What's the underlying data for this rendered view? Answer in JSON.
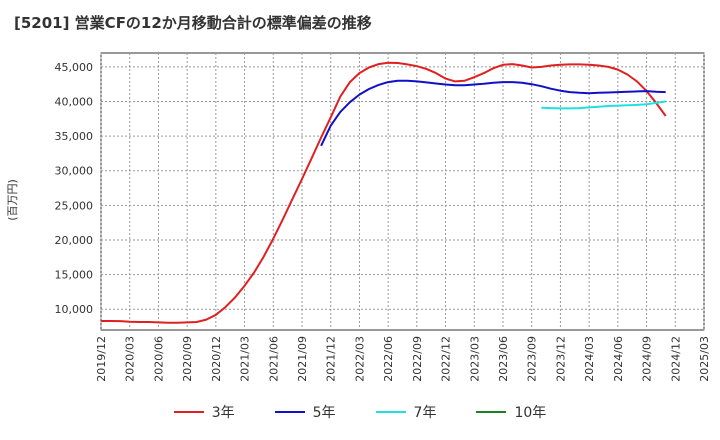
{
  "title": "[5201]  営業CFの12か月移動合計の標準偏差の推移",
  "chart_data": {
    "type": "line",
    "ylabel": "(百万円)",
    "xlabel": "",
    "ylim": [
      7000,
      47000
    ],
    "yticks": [
      10000,
      15000,
      20000,
      25000,
      30000,
      35000,
      40000,
      45000
    ],
    "ytick_labels": [
      "10,000",
      "15,000",
      "20,000",
      "25,000",
      "30,000",
      "35,000",
      "40,000",
      "45,000"
    ],
    "x_range": [
      "2019-12",
      "2025-03"
    ],
    "xtick_labels": [
      "2019/12",
      "2020/03",
      "2020/06",
      "2020/09",
      "2020/12",
      "2021/03",
      "2021/06",
      "2021/09",
      "2021/12",
      "2022/03",
      "2022/06",
      "2022/09",
      "2022/12",
      "2023/03",
      "2023/06",
      "2023/09",
      "2023/12",
      "2024/03",
      "2024/06",
      "2024/09",
      "2024/12",
      "2025/03"
    ],
    "grid": true,
    "legend_position": "bottom",
    "series": [
      {
        "name": "3年",
        "color": "#e02020",
        "points": [
          [
            "2019-12",
            8300
          ],
          [
            "2020-01",
            8300
          ],
          [
            "2020-02",
            8280
          ],
          [
            "2020-03",
            8200
          ],
          [
            "2020-04",
            8150
          ],
          [
            "2020-05",
            8150
          ],
          [
            "2020-06",
            8100
          ],
          [
            "2020-07",
            8050
          ],
          [
            "2020-08",
            8050
          ],
          [
            "2020-09",
            8100
          ],
          [
            "2020-10",
            8150
          ],
          [
            "2020-11",
            8500
          ],
          [
            "2020-12",
            9200
          ],
          [
            "2021-01",
            10300
          ],
          [
            "2021-02",
            11700
          ],
          [
            "2021-03",
            13400
          ],
          [
            "2021-04",
            15300
          ],
          [
            "2021-05",
            17600
          ],
          [
            "2021-06",
            20200
          ],
          [
            "2021-07",
            23000
          ],
          [
            "2021-08",
            25900
          ],
          [
            "2021-09",
            28800
          ],
          [
            "2021-10",
            31800
          ],
          [
            "2021-11",
            34800
          ],
          [
            "2021-12",
            37700
          ],
          [
            "2022-01",
            40700
          ],
          [
            "2022-02",
            42800
          ],
          [
            "2022-03",
            44100
          ],
          [
            "2022-04",
            44900
          ],
          [
            "2022-05",
            45400
          ],
          [
            "2022-06",
            45600
          ],
          [
            "2022-07",
            45550
          ],
          [
            "2022-08",
            45350
          ],
          [
            "2022-09",
            45100
          ],
          [
            "2022-10",
            44700
          ],
          [
            "2022-11",
            44100
          ],
          [
            "2022-12",
            43300
          ],
          [
            "2023-01",
            42900
          ],
          [
            "2023-02",
            43000
          ],
          [
            "2023-03",
            43500
          ],
          [
            "2023-04",
            44100
          ],
          [
            "2023-05",
            44800
          ],
          [
            "2023-06",
            45300
          ],
          [
            "2023-07",
            45400
          ],
          [
            "2023-08",
            45200
          ],
          [
            "2023-09",
            44900
          ],
          [
            "2023-10",
            45000
          ],
          [
            "2023-11",
            45200
          ],
          [
            "2023-12",
            45300
          ],
          [
            "2024-01",
            45350
          ],
          [
            "2024-02",
            45350
          ],
          [
            "2024-03",
            45300
          ],
          [
            "2024-04",
            45200
          ],
          [
            "2024-05",
            45000
          ],
          [
            "2024-06",
            44600
          ],
          [
            "2024-07",
            43900
          ],
          [
            "2024-08",
            42900
          ],
          [
            "2024-09",
            41500
          ],
          [
            "2024-10",
            39800
          ],
          [
            "2024-11",
            37900
          ]
        ]
      },
      {
        "name": "5年",
        "color": "#1010c8",
        "points": [
          [
            "2021-11",
            33600
          ],
          [
            "2021-12",
            36500
          ],
          [
            "2022-01",
            38500
          ],
          [
            "2022-02",
            39900
          ],
          [
            "2022-03",
            41000
          ],
          [
            "2022-04",
            41800
          ],
          [
            "2022-05",
            42400
          ],
          [
            "2022-06",
            42800
          ],
          [
            "2022-07",
            43000
          ],
          [
            "2022-08",
            43000
          ],
          [
            "2022-09",
            42900
          ],
          [
            "2022-10",
            42750
          ],
          [
            "2022-11",
            42600
          ],
          [
            "2022-12",
            42450
          ],
          [
            "2023-01",
            42350
          ],
          [
            "2023-02",
            42350
          ],
          [
            "2023-03",
            42450
          ],
          [
            "2023-04",
            42550
          ],
          [
            "2023-05",
            42700
          ],
          [
            "2023-06",
            42800
          ],
          [
            "2023-07",
            42800
          ],
          [
            "2023-08",
            42700
          ],
          [
            "2023-09",
            42500
          ],
          [
            "2023-10",
            42200
          ],
          [
            "2023-11",
            41850
          ],
          [
            "2023-12",
            41550
          ],
          [
            "2024-01",
            41350
          ],
          [
            "2024-02",
            41250
          ],
          [
            "2024-03",
            41200
          ],
          [
            "2024-04",
            41250
          ],
          [
            "2024-05",
            41300
          ],
          [
            "2024-06",
            41350
          ],
          [
            "2024-07",
            41400
          ],
          [
            "2024-08",
            41450
          ],
          [
            "2024-09",
            41500
          ],
          [
            "2024-10",
            41400
          ],
          [
            "2024-11",
            41350
          ]
        ]
      },
      {
        "name": "7年",
        "color": "#20e0e0",
        "points": [
          [
            "2023-10",
            39100
          ],
          [
            "2023-11",
            39050
          ],
          [
            "2023-12",
            39000
          ],
          [
            "2024-01",
            39000
          ],
          [
            "2024-02",
            39050
          ],
          [
            "2024-03",
            39150
          ],
          [
            "2024-04",
            39250
          ],
          [
            "2024-05",
            39350
          ],
          [
            "2024-06",
            39400
          ],
          [
            "2024-07",
            39450
          ],
          [
            "2024-08",
            39500
          ],
          [
            "2024-09",
            39600
          ],
          [
            "2024-10",
            39800
          ],
          [
            "2024-11",
            40000
          ]
        ]
      },
      {
        "name": "10年",
        "color": "#208020",
        "points": []
      }
    ]
  }
}
